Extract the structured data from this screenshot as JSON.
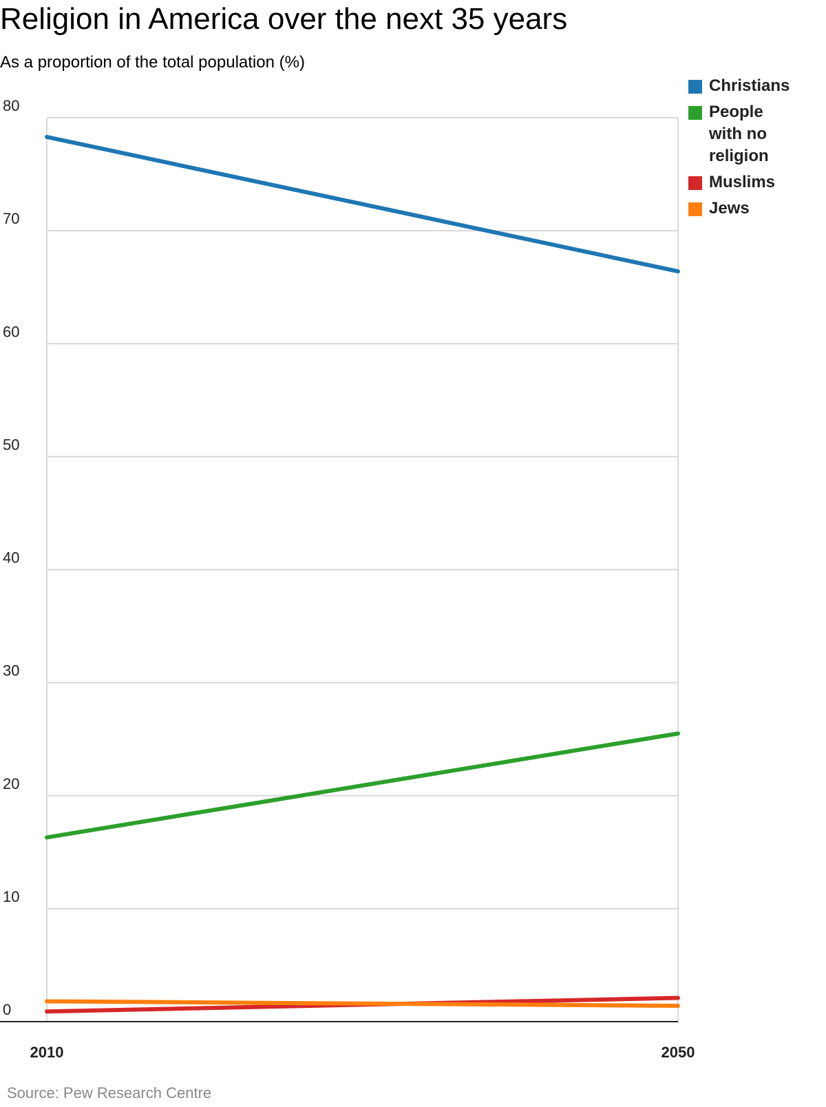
{
  "chart_data": {
    "type": "line",
    "title": "Religion in America over the next 35 years",
    "subtitle": "As a proportion of the total population (%)",
    "x": [
      "2010",
      "2050"
    ],
    "ylim": [
      0,
      80
    ],
    "yticks": [
      0,
      10,
      20,
      30,
      40,
      50,
      60,
      70,
      80
    ],
    "grid": true,
    "legend_position": "top-right",
    "series": [
      {
        "name": "Christians",
        "color": "#1f77b4",
        "values": [
          78.3,
          66.4
        ]
      },
      {
        "name": "People with no religion",
        "color": "#2ca02c",
        "values": [
          16.3,
          25.5
        ]
      },
      {
        "name": "Muslims",
        "color": "#d62728",
        "values": [
          0.9,
          2.1
        ]
      },
      {
        "name": "Jews",
        "color": "#ff7f0e",
        "values": [
          1.8,
          1.4
        ]
      }
    ],
    "source": "Source: Pew Research Centre"
  },
  "legend": {
    "items": [
      {
        "label": "Christians",
        "color": "#1f77b4"
      },
      {
        "label": "People with no religion",
        "color": "#2ca02c"
      },
      {
        "label": "Muslims",
        "color": "#d62728"
      },
      {
        "label": "Jews",
        "color": "#ff7f0e"
      }
    ]
  }
}
